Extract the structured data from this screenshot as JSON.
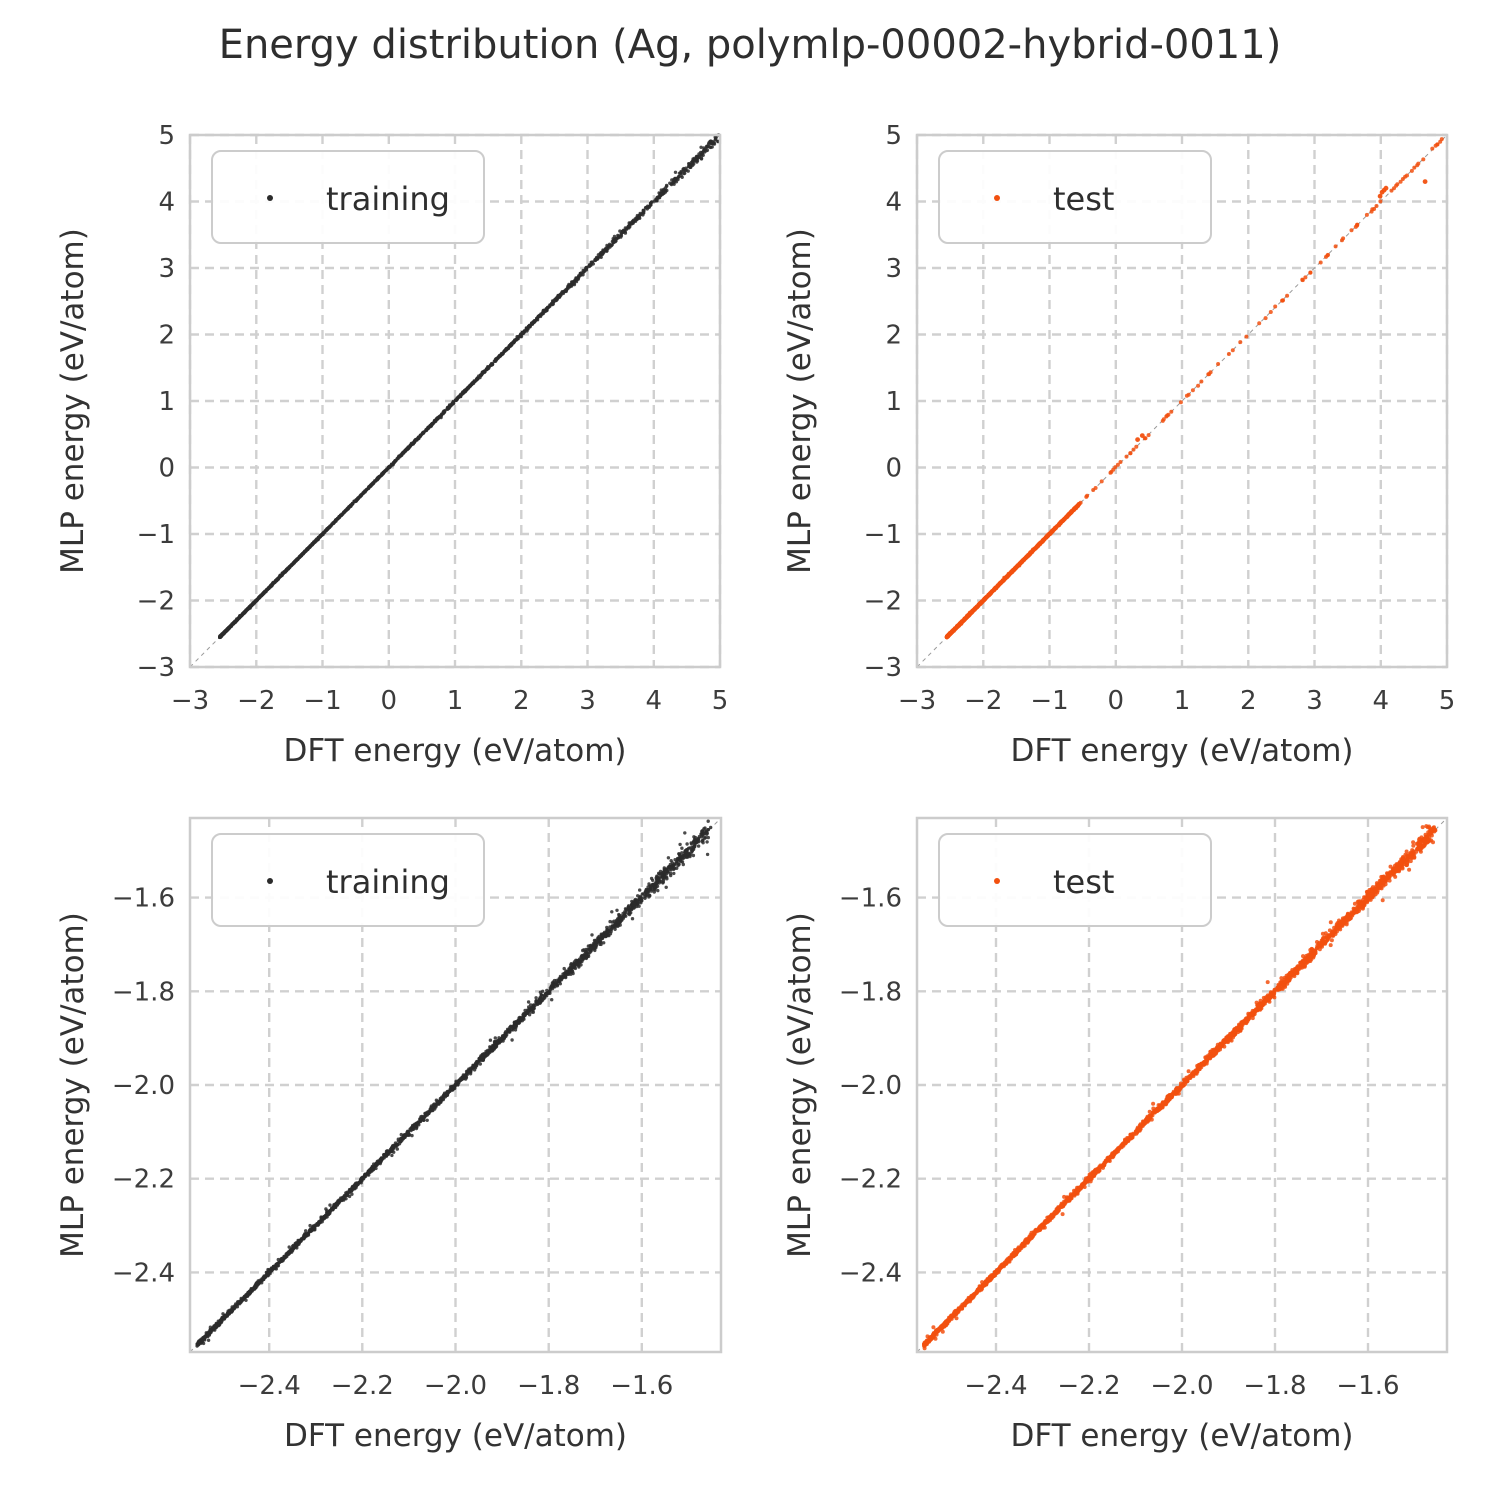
{
  "title": "Energy distribution (Ag, polymlp-00002-hybrid-0011)",
  "style": {
    "background": "#ffffff",
    "grid_color": "#d0d0d0",
    "spine_color": "#cccccc",
    "identity_line_color": "#9a9a9a",
    "tick_text_color": "#3c3c3c",
    "label_text_color": "#333333",
    "legend_text_color": "#2e2e2e",
    "legend_border_color": "#cccccc",
    "training_color": "#2b2b2b",
    "test_color": "#f2500f"
  },
  "chart_data": [
    {
      "id": "training-full-range",
      "type": "scatter",
      "series_name": "training",
      "legend": "training",
      "legend_position": "upper left",
      "xlabel": "DFT energy (eV/atom)",
      "ylabel": "MLP energy (eV/atom)",
      "xlim": [
        -3,
        5
      ],
      "ylim": [
        -3,
        5
      ],
      "xticks": {
        "values": [
          -3,
          -2,
          -1,
          0,
          1,
          2,
          3,
          4,
          5
        ],
        "labels": [
          "−3",
          "−2",
          "−1",
          "0",
          "1",
          "2",
          "3",
          "4",
          "5"
        ]
      },
      "yticks": {
        "values": [
          -3,
          -2,
          -1,
          0,
          1,
          2,
          3,
          4,
          5
        ],
        "labels": [
          "−3",
          "−2",
          "−1",
          "0",
          "1",
          "2",
          "3",
          "4",
          "5"
        ]
      },
      "grid": true,
      "identity_line": true,
      "relation": "y ≈ x: MLP energy matches DFT energy along the diagonal",
      "marker_color": "#2b2b2b",
      "marker_radius": 1.7,
      "data_spec": {
        "x_min": -2.55,
        "x_max": 4.98,
        "n": 2400,
        "density_skew": 2.0,
        "jitter_base": 0.004,
        "jitter_amp": 0.03,
        "jitter_power": 3,
        "speckle_frac": 0.05,
        "speckle_mult": 2.5,
        "seed": 101
      },
      "outliers": []
    },
    {
      "id": "test-full-range",
      "type": "scatter",
      "series_name": "test",
      "legend": "test",
      "legend_position": "upper left",
      "xlabel": "DFT energy (eV/atom)",
      "ylabel": "MLP energy (eV/atom)",
      "xlim": [
        -3,
        5
      ],
      "ylim": [
        -3,
        5
      ],
      "xticks": {
        "values": [
          -3,
          -2,
          -1,
          0,
          1,
          2,
          3,
          4,
          5
        ],
        "labels": [
          "−3",
          "−2",
          "−1",
          "0",
          "1",
          "2",
          "3",
          "4",
          "5"
        ]
      },
      "yticks": {
        "values": [
          -3,
          -2,
          -1,
          0,
          1,
          2,
          3,
          4,
          5
        ],
        "labels": [
          "−3",
          "−2",
          "−1",
          "0",
          "1",
          "2",
          "3",
          "4",
          "5"
        ]
      },
      "grid": true,
      "identity_line": true,
      "relation": "y ≈ x: dense below −0.6 eV, sparse points up to 5 eV",
      "marker_color": "#f2500f",
      "marker_radius": 2.0,
      "data_spec": {
        "x_min": -2.55,
        "x_max": 4.95,
        "n": 1300,
        "mixture_low_frac": 0.94,
        "mixture_split": -0.55,
        "mixture_low_skew": 1.6,
        "jitter_base": 0.004,
        "jitter_amp": 0.006,
        "jitter_power": 2,
        "speckle_frac": 0.04,
        "speckle_mult": 2.5,
        "seed": 202
      },
      "outliers": [
        [
          4.67,
          4.3
        ],
        [
          4.02,
          4.14
        ],
        [
          4.05,
          4.17
        ],
        [
          4.08,
          4.2
        ],
        [
          3.99,
          4.08
        ],
        [
          0.33,
          0.42
        ],
        [
          0.4,
          0.48
        ]
      ]
    },
    {
      "id": "training-zoom-low-energy",
      "type": "scatter",
      "series_name": "training",
      "legend": "training",
      "legend_position": "upper left",
      "xlabel": "DFT energy (eV/atom)",
      "ylabel": "MLP energy (eV/atom)",
      "xlim": [
        -2.57,
        -1.43
      ],
      "ylim": [
        -2.57,
        -1.43
      ],
      "xticks": {
        "values": [
          -2.4,
          -2.2,
          -2.0,
          -1.8,
          -1.6
        ],
        "labels": [
          "−2.4",
          "−2.2",
          "−2.0",
          "−1.8",
          "−1.6"
        ]
      },
      "yticks": {
        "values": [
          -2.4,
          -2.2,
          -2.0,
          -1.8,
          -1.6
        ],
        "labels": [
          "−2.4",
          "−2.2",
          "−2.0",
          "−1.8",
          "−1.6"
        ]
      },
      "grid": true,
      "identity_line": true,
      "relation": "y ≈ x: zoomed view of low-energy region",
      "marker_color": "#2b2b2b",
      "marker_radius": 1.7,
      "data_spec": {
        "x_min": -2.555,
        "x_max": -1.452,
        "n": 2300,
        "density_skew": 1.15,
        "jitter_base": 0.0022,
        "jitter_amp": 0.006,
        "jitter_power": 2.5,
        "speckle_frac": 0.05,
        "speckle_mult": 3,
        "seed": 303
      },
      "outliers": []
    },
    {
      "id": "test-zoom-low-energy",
      "type": "scatter",
      "series_name": "test",
      "legend": "test",
      "legend_position": "upper left",
      "xlabel": "DFT energy (eV/atom)",
      "ylabel": "MLP energy (eV/atom)",
      "xlim": [
        -2.57,
        -1.43
      ],
      "ylim": [
        -2.57,
        -1.43
      ],
      "xticks": {
        "values": [
          -2.4,
          -2.2,
          -2.0,
          -1.8,
          -1.6
        ],
        "labels": [
          "−2.4",
          "−2.2",
          "−2.0",
          "−1.8",
          "−1.6"
        ]
      },
      "yticks": {
        "values": [
          -2.4,
          -2.2,
          -2.0,
          -1.8,
          -1.6
        ],
        "labels": [
          "−2.4",
          "−2.2",
          "−2.0",
          "−1.8",
          "−1.6"
        ]
      },
      "grid": true,
      "identity_line": true,
      "relation": "y ≈ x: zoomed view of low-energy region",
      "marker_color": "#f2500f",
      "marker_radius": 2.0,
      "data_spec": {
        "x_min": -2.555,
        "x_max": -1.455,
        "n": 2200,
        "density_skew": 1.15,
        "jitter_base": 0.0022,
        "jitter_amp": 0.006,
        "jitter_power": 2.5,
        "speckle_frac": 0.05,
        "speckle_mult": 3,
        "seed": 404
      },
      "outliers": []
    }
  ]
}
